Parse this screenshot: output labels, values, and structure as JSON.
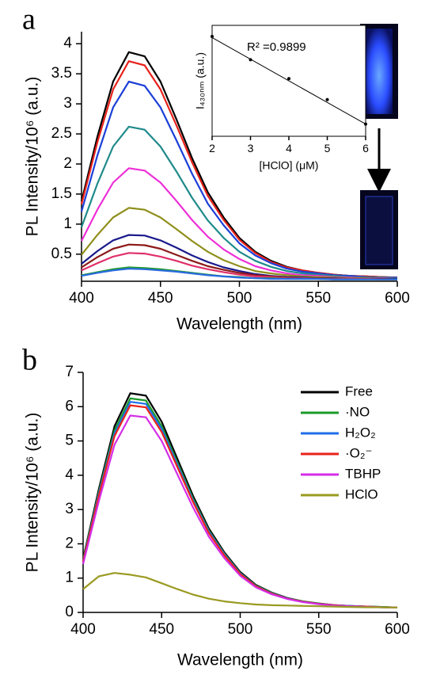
{
  "chart_data": [
    {
      "type": "line",
      "panel_label": "a",
      "xlabel": "Wavelength (nm)",
      "ylabel": "PL Intensity/10⁶ (a.u.)",
      "xlim": [
        400,
        600
      ],
      "xticks": [
        400,
        450,
        500,
        550,
        600
      ],
      "ylim": [
        0.05,
        4.2
      ],
      "yticks": [
        0.5,
        1,
        1.5,
        2,
        2.5,
        3,
        3.5,
        4
      ],
      "x": [
        400,
        410,
        420,
        430,
        440,
        450,
        460,
        470,
        480,
        490,
        500,
        510,
        520,
        530,
        540,
        550,
        560,
        570,
        580,
        590,
        600
      ],
      "series": [
        {
          "color": "#000000",
          "values": [
            1.38,
            2.45,
            3.37,
            3.86,
            3.79,
            3.37,
            2.75,
            2.1,
            1.53,
            1.11,
            0.77,
            0.54,
            0.39,
            0.29,
            0.23,
            0.19,
            0.16,
            0.14,
            0.13,
            0.12,
            0.11
          ]
        },
        {
          "color": "#e8221b",
          "values": [
            1.33,
            2.36,
            3.24,
            3.71,
            3.64,
            3.24,
            2.65,
            2.03,
            1.47,
            1.07,
            0.74,
            0.52,
            0.37,
            0.28,
            0.23,
            0.19,
            0.16,
            0.14,
            0.13,
            0.12,
            0.11
          ]
        },
        {
          "color": "#1c3fd8",
          "values": [
            1.21,
            2.14,
            2.94,
            3.37,
            3.3,
            2.94,
            2.4,
            1.84,
            1.34,
            0.98,
            0.68,
            0.48,
            0.35,
            0.26,
            0.21,
            0.18,
            0.15,
            0.14,
            0.12,
            0.11,
            0.11
          ]
        },
        {
          "color": "#1f8a8a",
          "values": [
            0.95,
            1.67,
            2.29,
            2.62,
            2.57,
            2.29,
            1.88,
            1.44,
            1.06,
            0.77,
            0.54,
            0.39,
            0.29,
            0.22,
            0.18,
            0.16,
            0.14,
            0.12,
            0.11,
            0.11,
            0.1
          ]
        },
        {
          "color": "#ee2fd8",
          "values": [
            0.72,
            1.24,
            1.69,
            1.93,
            1.89,
            1.69,
            1.39,
            1.07,
            0.79,
            0.58,
            0.42,
            0.3,
            0.23,
            0.18,
            0.15,
            0.14,
            0.12,
            0.11,
            0.1,
            0.1,
            0.09
          ]
        },
        {
          "color": "#8f8f1c",
          "values": [
            0.49,
            0.82,
            1.11,
            1.27,
            1.24,
            1.11,
            0.92,
            0.72,
            0.54,
            0.4,
            0.3,
            0.22,
            0.18,
            0.15,
            0.13,
            0.12,
            0.11,
            0.1,
            0.1,
            0.09,
            0.09
          ]
        },
        {
          "color": "#1a1a8c",
          "values": [
            0.34,
            0.55,
            0.73,
            0.82,
            0.81,
            0.73,
            0.61,
            0.48,
            0.37,
            0.28,
            0.22,
            0.17,
            0.14,
            0.12,
            0.11,
            0.1,
            0.1,
            0.09,
            0.09,
            0.09,
            0.09
          ]
        },
        {
          "color": "#8c1a1a",
          "values": [
            0.28,
            0.45,
            0.59,
            0.66,
            0.65,
            0.59,
            0.49,
            0.39,
            0.3,
            0.24,
            0.19,
            0.15,
            0.13,
            0.11,
            0.1,
            0.1,
            0.09,
            0.09,
            0.09,
            0.09,
            0.08
          ]
        },
        {
          "color": "#e0306a",
          "values": [
            0.23,
            0.35,
            0.46,
            0.52,
            0.51,
            0.46,
            0.39,
            0.31,
            0.25,
            0.2,
            0.16,
            0.13,
            0.12,
            0.1,
            0.1,
            0.09,
            0.09,
            0.09,
            0.09,
            0.08,
            0.08
          ]
        },
        {
          "color": "#1c9a2a",
          "values": [
            0.15,
            0.2,
            0.25,
            0.28,
            0.27,
            0.25,
            0.22,
            0.19,
            0.16,
            0.13,
            0.12,
            0.1,
            0.1,
            0.09,
            0.09,
            0.09,
            0.08,
            0.08,
            0.08,
            0.08,
            0.08
          ]
        },
        {
          "color": "#2a6ae0",
          "values": [
            0.14,
            0.19,
            0.23,
            0.26,
            0.25,
            0.23,
            0.21,
            0.18,
            0.15,
            0.13,
            0.11,
            0.1,
            0.09,
            0.09,
            0.09,
            0.09,
            0.08,
            0.08,
            0.08,
            0.08,
            0.08
          ]
        }
      ]
    },
    {
      "type": "scatter",
      "xlabel": "[HClO] (μM)",
      "ylabel": "I₄₃₀ₙₘ (a.u.)",
      "annotation": "R² =0.9899",
      "xlim": [
        2,
        6
      ],
      "xticks": [
        2,
        3,
        4,
        5,
        6
      ],
      "ylim": [
        0,
        10
      ],
      "x": [
        2,
        3,
        4,
        5,
        6
      ],
      "values": [
        9.0,
        6.9,
        5.2,
        3.3,
        1.1
      ],
      "color": "#000000",
      "fit_line": {
        "x": [
          2,
          6
        ],
        "values": [
          8.9,
          1.1
        ]
      }
    },
    {
      "type": "line",
      "panel_label": "b",
      "xlabel": "Wavelength (nm)",
      "ylabel": "PL Intensity/10⁶ (a.u.)",
      "xlim": [
        400,
        600
      ],
      "xticks": [
        400,
        450,
        500,
        550,
        600
      ],
      "ylim": [
        0,
        7
      ],
      "yticks": [
        0,
        1,
        2,
        3,
        4,
        5,
        6,
        7
      ],
      "legend": "upper right",
      "x": [
        400,
        410,
        420,
        430,
        440,
        450,
        460,
        470,
        480,
        490,
        500,
        510,
        520,
        530,
        540,
        550,
        560,
        570,
        580,
        590,
        600
      ],
      "series": [
        {
          "name": "Free",
          "color": "#000000",
          "values": [
            1.56,
            3.59,
            5.43,
            6.39,
            6.32,
            5.56,
            4.48,
            3.4,
            2.45,
            1.75,
            1.18,
            0.8,
            0.58,
            0.42,
            0.32,
            0.26,
            0.21,
            0.19,
            0.17,
            0.16,
            0.14
          ]
        },
        {
          "name": "·NO",
          "color": "#1c9a2a",
          "values": [
            1.53,
            3.51,
            5.31,
            6.24,
            6.18,
            5.43,
            4.38,
            3.32,
            2.39,
            1.71,
            1.15,
            0.78,
            0.57,
            0.41,
            0.32,
            0.26,
            0.21,
            0.19,
            0.17,
            0.16,
            0.14
          ]
        },
        {
          "name": "H₂O₂",
          "color": "#1e6ee8",
          "values": [
            1.5,
            3.46,
            5.22,
            6.14,
            6.08,
            5.35,
            4.31,
            3.27,
            2.36,
            1.69,
            1.14,
            0.77,
            0.56,
            0.41,
            0.31,
            0.25,
            0.21,
            0.19,
            0.17,
            0.15,
            0.14
          ]
        },
        {
          "name": "·O₂⁻",
          "color": "#e8221b",
          "values": [
            1.48,
            3.4,
            5.14,
            6.04,
            5.98,
            5.26,
            4.24,
            3.22,
            2.32,
            1.66,
            1.12,
            0.76,
            0.55,
            0.4,
            0.31,
            0.25,
            0.21,
            0.18,
            0.17,
            0.15,
            0.14
          ]
        },
        {
          "name": "TBHP",
          "color": "#d42ee8",
          "values": [
            1.41,
            3.24,
            4.89,
            5.74,
            5.69,
            5.0,
            4.03,
            3.06,
            2.21,
            1.58,
            1.07,
            0.73,
            0.53,
            0.39,
            0.3,
            0.24,
            0.2,
            0.18,
            0.16,
            0.15,
            0.14
          ]
        },
        {
          "name": "HClO",
          "color": "#9a9a22",
          "values": [
            0.68,
            1.05,
            1.15,
            1.1,
            1.02,
            0.85,
            0.68,
            0.52,
            0.4,
            0.32,
            0.27,
            0.23,
            0.21,
            0.2,
            0.19,
            0.18,
            0.17,
            0.16,
            0.15,
            0.15,
            0.14
          ]
        }
      ]
    }
  ]
}
